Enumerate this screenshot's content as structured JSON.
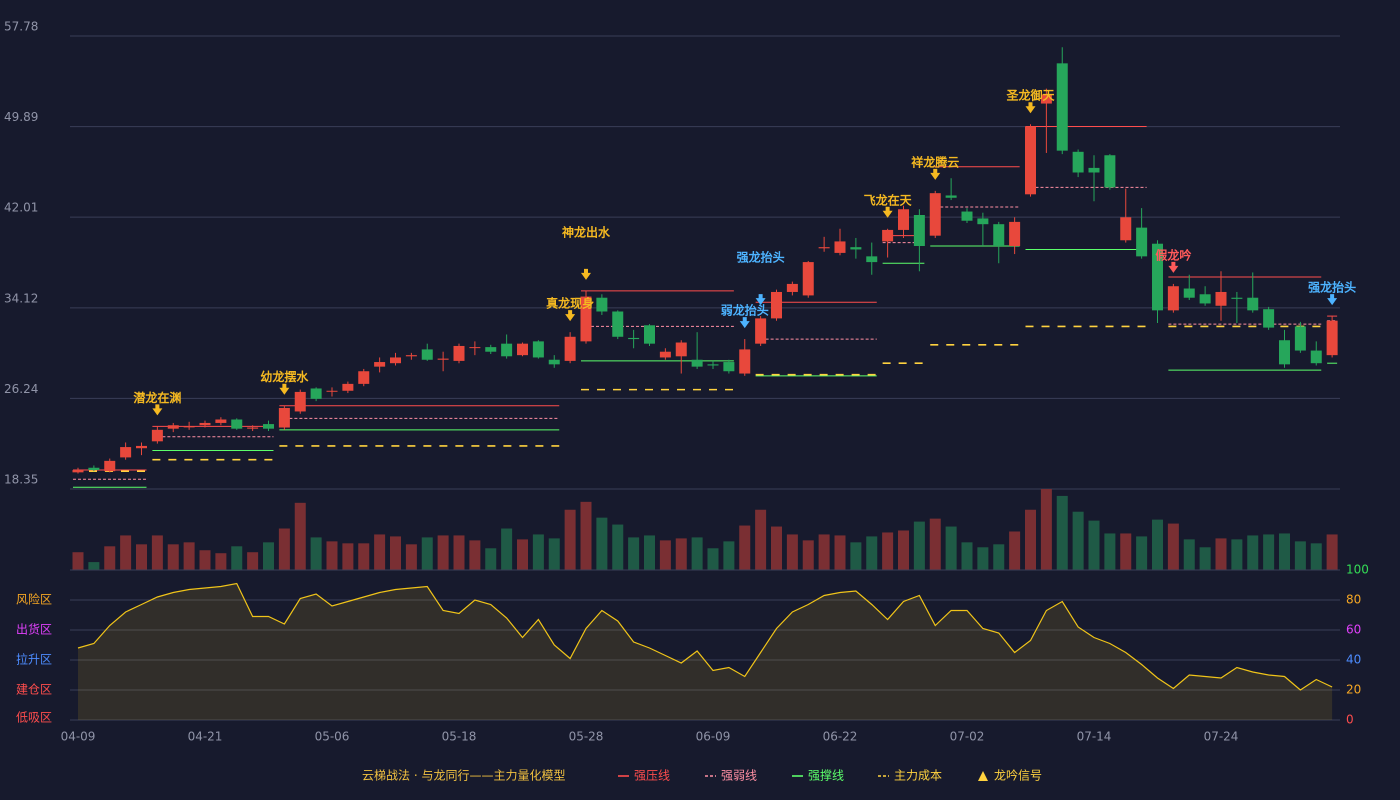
{
  "chart_data": [
    {
      "type": "candlestick",
      "categories": [
        "04-09",
        null,
        null,
        null,
        null,
        null,
        null,
        null,
        "04-21",
        null,
        null,
        null,
        null,
        null,
        null,
        null,
        "05-06",
        null,
        null,
        null,
        null,
        null,
        null,
        null,
        "05-18",
        null,
        null,
        null,
        null,
        null,
        null,
        null,
        "05-28",
        null,
        null,
        null,
        null,
        null,
        null,
        null,
        "06-09",
        null,
        null,
        null,
        null,
        null,
        null,
        null,
        "06-22",
        null,
        null,
        null,
        null,
        null,
        null,
        null,
        "07-02",
        null,
        null,
        null,
        null,
        null,
        null,
        null,
        "07-14",
        null,
        null,
        null,
        null,
        null,
        null,
        null,
        "07-24",
        null,
        null,
        null,
        null,
        null,
        null,
        null
      ],
      "open": [
        19.8,
        20.2,
        19.9,
        21.1,
        21.9,
        22.5,
        23.6,
        23.8,
        23.9,
        24.1,
        24.4,
        23.6,
        24.0,
        23.7,
        25.1,
        27.1,
        26.9,
        26.9,
        27.5,
        29.0,
        29.3,
        29.9,
        30.5,
        29.6,
        29.5,
        30.7,
        30.7,
        31.0,
        30.0,
        31.2,
        29.6,
        29.5,
        31.2,
        35.0,
        33.8,
        31.5,
        32.6,
        29.8,
        29.9,
        29.6,
        29.2,
        29.4,
        28.4,
        31.0,
        33.2,
        35.5,
        35.2,
        39.3,
        38.9,
        39.4,
        38.6,
        39.9,
        40.9,
        42.2,
        40.4,
        43.9,
        42.5,
        41.9,
        41.4,
        39.5,
        44.0,
        51.9,
        55.4,
        47.7,
        46.3,
        47.4,
        40.0,
        41.1,
        39.7,
        33.9,
        35.8,
        35.3,
        34.3,
        35.0,
        35.0,
        34.0,
        31.3,
        32.5,
        30.4,
        30.0
      ],
      "close": [
        20.0,
        20.0,
        20.8,
        22.0,
        22.1,
        23.5,
        23.9,
        23.8,
        24.1,
        24.4,
        23.6,
        23.7,
        23.6,
        25.4,
        26.8,
        26.2,
        26.9,
        27.5,
        28.6,
        29.4,
        29.8,
        30.0,
        29.6,
        29.7,
        30.8,
        30.7,
        30.3,
        29.9,
        31.0,
        29.8,
        29.2,
        31.6,
        35.1,
        33.8,
        31.6,
        31.4,
        31.0,
        30.3,
        31.1,
        29.0,
        29.1,
        28.6,
        30.5,
        33.2,
        35.5,
        36.2,
        38.1,
        39.4,
        39.9,
        39.2,
        38.1,
        40.9,
        42.7,
        39.5,
        44.1,
        43.7,
        41.7,
        41.4,
        39.5,
        41.6,
        49.9,
        52.7,
        47.8,
        45.9,
        45.9,
        44.6,
        42.0,
        38.6,
        33.9,
        36.0,
        35.0,
        34.5,
        35.5,
        34.9,
        33.9,
        32.4,
        29.2,
        30.4,
        29.3,
        33.0
      ],
      "high": [
        20.2,
        20.4,
        21.0,
        22.4,
        22.4,
        23.8,
        24.1,
        24.2,
        24.3,
        24.6,
        24.5,
        23.9,
        24.3,
        25.6,
        27.0,
        27.2,
        27.2,
        27.7,
        28.8,
        29.8,
        30.2,
        30.2,
        31.0,
        30.3,
        31.0,
        31.2,
        30.9,
        31.8,
        31.1,
        31.3,
        30.0,
        32.0,
        35.6,
        35.3,
        33.9,
        32.2,
        32.7,
        30.6,
        31.3,
        32.0,
        29.5,
        29.6,
        31.4,
        33.4,
        35.7,
        36.4,
        38.2,
        40.3,
        41.0,
        40.2,
        39.8,
        41.0,
        43.0,
        42.7,
        44.3,
        45.4,
        42.8,
        42.4,
        41.6,
        42.0,
        50.1,
        53.2,
        56.8,
        47.9,
        47.4,
        47.5,
        44.5,
        42.8,
        40.0,
        36.2,
        37.0,
        36.0,
        37.3,
        35.5,
        37.2,
        34.2,
        32.2,
        32.9,
        31.2,
        33.4
      ],
      "low": [
        19.7,
        19.9,
        19.8,
        20.9,
        21.3,
        22.3,
        23.3,
        23.5,
        23.7,
        23.9,
        23.5,
        23.4,
        23.4,
        23.5,
        24.9,
        26.0,
        26.4,
        26.7,
        27.3,
        28.5,
        29.1,
        29.6,
        29.5,
        28.6,
        29.3,
        30.0,
        30.1,
        29.7,
        29.9,
        29.7,
        28.9,
        29.3,
        31.0,
        33.5,
        31.4,
        30.6,
        30.8,
        29.6,
        28.4,
        28.8,
        28.8,
        28.4,
        28.2,
        30.8,
        33.0,
        35.2,
        35.0,
        39.0,
        38.7,
        38.4,
        37.0,
        38.5,
        40.2,
        37.3,
        40.2,
        43.5,
        41.5,
        39.5,
        38.0,
        38.8,
        43.8,
        47.6,
        47.5,
        45.5,
        43.4,
        44.4,
        39.8,
        38.4,
        32.8,
        33.7,
        34.8,
        34.3,
        33.0,
        32.8,
        33.7,
        32.2,
        28.9,
        30.2,
        29.1,
        29.8
      ],
      "up_color": "#e8483c",
      "down_color": "#26a65b",
      "ylim": [
        18.35,
        57.78
      ],
      "yticks": [
        18.35,
        26.24,
        34.12,
        42.01,
        49.89,
        57.78
      ],
      "grid": true,
      "levels": [
        {
          "start": 0,
          "end": 4,
          "resist": 20.0,
          "pivot": 19.2,
          "support": 18.5,
          "cost": 19.9
        },
        {
          "start": 5,
          "end": 12,
          "resist": 23.8,
          "pivot": 22.9,
          "support": 21.7,
          "cost": 20.9
        },
        {
          "start": 13,
          "end": 30,
          "resist": 25.6,
          "pivot": 24.5,
          "support": 23.5,
          "cost": 22.1
        },
        {
          "start": 32,
          "end": 41,
          "resist": 35.6,
          "pivot": 32.5,
          "support": 29.5,
          "cost": 27.0
        },
        {
          "start": 43,
          "end": 50,
          "resist": 34.6,
          "pivot": 31.4,
          "support": 28.2,
          "cost": 28.3
        },
        {
          "start": 51,
          "end": 53,
          "resist": 40.4,
          "pivot": 39.8,
          "support": 38.0,
          "cost": 29.3
        },
        {
          "start": 54,
          "end": 59,
          "resist": 46.4,
          "pivot": 42.9,
          "support": 39.5,
          "cost": 30.9
        },
        {
          "start": 60,
          "end": 67,
          "resist": 49.9,
          "pivot": 44.6,
          "support": 39.2,
          "cost": 32.5
        },
        {
          "start": 69,
          "end": 78,
          "resist": 36.8,
          "pivot": 32.7,
          "support": 28.7,
          "cost": 32.5
        },
        {
          "start": 79,
          "end": 79,
          "resist": 33.4,
          "pivot": 33.0,
          "support": 29.3,
          "cost": 32.1
        }
      ],
      "signals": [
        {
          "index": 5,
          "label": "潜龙在渊",
          "color": "#f5b921"
        },
        {
          "index": 13,
          "label": "幼龙摆水",
          "color": "#f5b921"
        },
        {
          "index": 31,
          "label": "真龙现身",
          "color": "#f5b921"
        },
        {
          "index": 32,
          "label": "神龙出水",
          "color": "#f5b921"
        },
        {
          "index": 42,
          "label": "弱龙抬头",
          "color": "#4db3ff"
        },
        {
          "index": 43,
          "label": "强龙抬头",
          "color": "#4db3ff"
        },
        {
          "index": 51,
          "label": "飞龙在天",
          "color": "#f5b921"
        },
        {
          "index": 54,
          "label": "祥龙腾云",
          "color": "#f5b921"
        },
        {
          "index": 60,
          "label": "圣龙御天",
          "color": "#f5b921"
        },
        {
          "index": 69,
          "label": "假龙吟",
          "color": "#ff5a5a"
        },
        {
          "index": 79,
          "label": "强龙抬头",
          "color": "#4db3ff"
        }
      ]
    },
    {
      "type": "bar",
      "values": [
        18,
        8,
        24,
        35,
        26,
        35,
        26,
        28,
        20,
        17,
        24,
        18,
        28,
        42,
        68,
        33,
        29,
        27,
        27,
        36,
        34,
        26,
        33,
        35,
        35,
        30,
        22,
        42,
        31,
        36,
        32,
        61,
        69,
        53,
        46,
        33,
        35,
        30,
        32,
        33,
        22,
        29,
        45,
        61,
        44,
        36,
        30,
        36,
        35,
        28,
        34,
        38,
        40,
        49,
        52,
        44,
        28,
        23,
        26,
        39,
        61,
        82,
        75,
        59,
        50,
        37,
        37,
        34,
        51,
        47,
        31,
        23,
        32,
        31,
        35,
        36,
        37,
        29,
        27,
        36
      ],
      "up_color": "#7a2f33",
      "down_color": "#1f5a46"
    },
    {
      "type": "area",
      "values": [
        48,
        51,
        63,
        72,
        77,
        82,
        85,
        87,
        88,
        89,
        91,
        69,
        69,
        64,
        81,
        84,
        76,
        79,
        82,
        85,
        87,
        88,
        89,
        73,
        71,
        80,
        77,
        68,
        55,
        67,
        50,
        41,
        61,
        73,
        66,
        52,
        48,
        43,
        38,
        46,
        33,
        35,
        29,
        45,
        61,
        72,
        77,
        83,
        85,
        86,
        77,
        67,
        79,
        83,
        63,
        73,
        73,
        61,
        58,
        45,
        53,
        73,
        79,
        62,
        55,
        51,
        45,
        37,
        28,
        21,
        30,
        29,
        28,
        35,
        32,
        30,
        29,
        20,
        27,
        22
      ],
      "color": "#f0c419",
      "ylim": [
        0,
        100
      ],
      "yticks": [
        0,
        20,
        40,
        60,
        80,
        100
      ],
      "ytick_colors": [
        "#ff4d4d",
        "#f5a623",
        "#4d8cff",
        "#e040fb",
        "#f5a623",
        "#33dd55"
      ],
      "zones": [
        {
          "label": "风险区",
          "value": 80,
          "color": "#f5a623"
        },
        {
          "label": "出货区",
          "value": 60,
          "color": "#e040fb"
        },
        {
          "label": "拉升区",
          "value": 40,
          "color": "#4d8cff"
        },
        {
          "label": "建仓区",
          "value": 20,
          "color": "#ff4d4d"
        },
        {
          "label": "低吸区",
          "value": 0,
          "color": "#ff4d4d"
        }
      ]
    }
  ],
  "legend": {
    "title": "云梯战法 · 与龙同行——主力量化模型",
    "title_color": "#f0c040",
    "items": [
      {
        "label": "强压线",
        "color": "#ff4d4d",
        "style": "solid"
      },
      {
        "label": "强弱线",
        "color": "#ff8fa3",
        "style": "dashed"
      },
      {
        "label": "强撑线",
        "color": "#5cff6b",
        "style": "solid"
      },
      {
        "label": "主力成本",
        "color": "#ffd23f",
        "style": "dashed"
      },
      {
        "label": "龙吟信号",
        "color": "#ffd23f",
        "style": "triangle"
      }
    ]
  }
}
